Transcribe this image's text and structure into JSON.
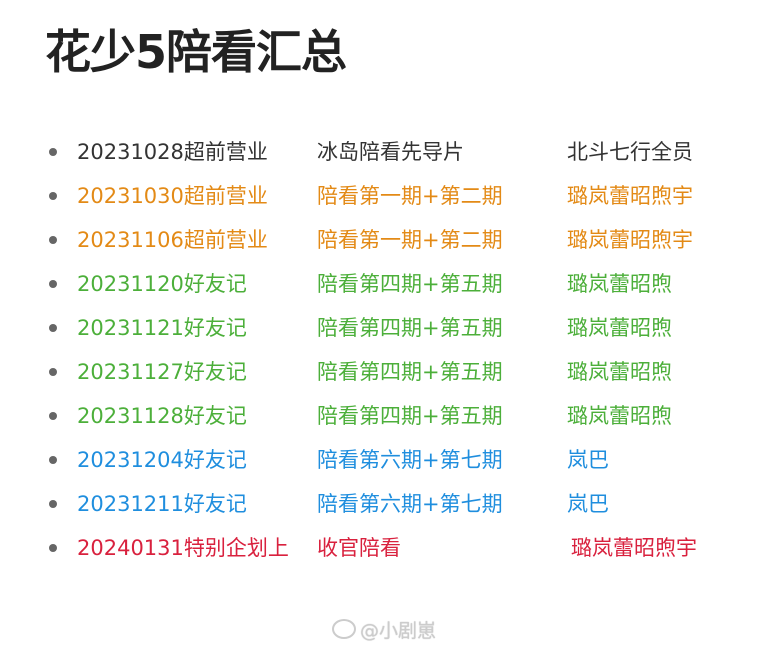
{
  "title": "花少5陪看汇总",
  "colors": {
    "black": "#333333",
    "orange": "#e38a16",
    "green": "#4caf3a",
    "blue": "#1f8ede",
    "red": "#d9213e"
  },
  "rows": [
    {
      "date": "20231028超前营业",
      "episode": "冰岛陪看先导片",
      "members": "北斗七行全员",
      "color": "#333333"
    },
    {
      "date": "20231030超前营业",
      "episode": "陪看第一期+第二期",
      "members": "璐岚蕾昭煦宇",
      "color": "#e38a16"
    },
    {
      "date": "20231106超前营业",
      "episode": "陪看第一期+第二期",
      "members": "璐岚蕾昭煦宇",
      "color": "#e38a16"
    },
    {
      "date": "20231120好友记",
      "episode": "陪看第四期+第五期",
      "members": "璐岚蕾昭煦",
      "color": "#4caf3a"
    },
    {
      "date": "20231121好友记",
      "episode": "陪看第四期+第五期",
      "members": "璐岚蕾昭煦",
      "color": "#4caf3a"
    },
    {
      "date": "20231127好友记",
      "episode": "陪看第四期+第五期",
      "members": "璐岚蕾昭煦",
      "color": "#4caf3a"
    },
    {
      "date": "20231128好友记",
      "episode": "陪看第四期+第五期",
      "members": "璐岚蕾昭煦",
      "color": "#4caf3a"
    },
    {
      "date": "20231204好友记",
      "episode": "陪看第六期+第七期",
      "members": "岚巴",
      "color": "#1f8ede"
    },
    {
      "date": "20231211好友记",
      "episode": "陪看第六期+第七期",
      "members": "岚巴",
      "color": "#1f8ede"
    },
    {
      "date": "20240131特别企划上",
      "episode": "收官陪看",
      "members": "璐岚蕾昭煦宇",
      "color": "#d9213e"
    }
  ],
  "watermark": "@小剧崽"
}
